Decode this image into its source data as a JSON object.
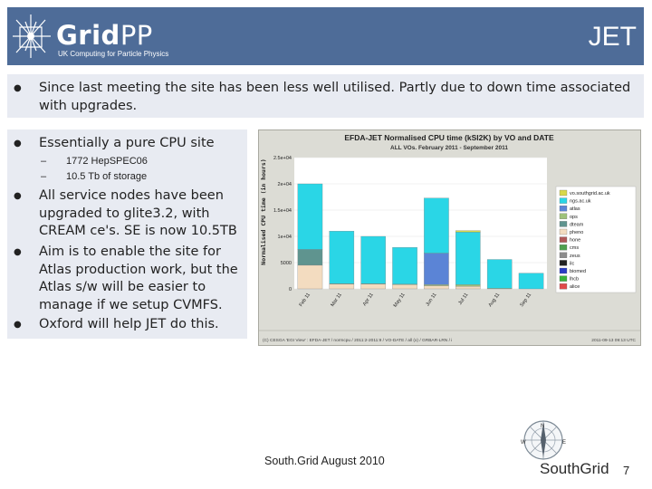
{
  "header": {
    "logo_main": "Grid",
    "logo_pp": "PP",
    "logo_sub": "UK Computing for Particle Physics",
    "title": "JET"
  },
  "bullets": [
    {
      "text1": "Since last meeting the site has been less well utilised. Partly due to down time associated",
      "text2": "with upgrades."
    },
    {
      "text": "Essentially a pure CPU site"
    },
    {
      "lines": [
        "All service nodes have been",
        "upgraded to glite3.2, with",
        "CREAM ce's. SE is now 10.5TB"
      ]
    },
    {
      "lines": [
        "Aim is to enable the site for",
        "Atlas production work, but the",
        "Atlas s/w will be easier to",
        "manage if we setup CVMFS."
      ]
    },
    {
      "text": "Oxford will help JET do this."
    }
  ],
  "sub_bullets": [
    "1772 HepSPEC06",
    "10.5 Tb of storage"
  ],
  "chart_data": {
    "type": "bar",
    "stacked": true,
    "title": "EFDA-JET Normalised CPU time (kSI2K) by VO and DATE",
    "subtitle": "ALL VOs. February 2011 - September 2011",
    "ylabel": "Normalised CPU time (in hours)",
    "yticks": [
      "0",
      "5000",
      "1e+04",
      "1.5e+04",
      "2e+04",
      "2.5e+04"
    ],
    "ylim": [
      0,
      25000
    ],
    "categories": [
      "Feb 11",
      "Mar 11",
      "Apr 11",
      "May 11",
      "Jun 11",
      "Jul 11",
      "Aug 11",
      "Sep 11"
    ],
    "series": [
      {
        "name": "pheno",
        "color": "#f3dcc0",
        "values": [
          4500,
          900,
          900,
          800,
          600,
          500,
          0,
          0
        ]
      },
      {
        "name": "dteam",
        "color": "#5f948f",
        "values": [
          3000,
          0,
          0,
          0,
          0,
          0,
          0,
          0
        ]
      },
      {
        "name": "ops",
        "color": "#9ec27a",
        "values": [
          0,
          100,
          100,
          100,
          200,
          300,
          100,
          0
        ]
      },
      {
        "name": "atlas",
        "color": "#5b84d6",
        "values": [
          0,
          0,
          0,
          0,
          6000,
          0,
          0,
          0
        ]
      },
      {
        "name": "ngs.ac.uk",
        "color": "#2ad6e6",
        "values": [
          12500,
          10000,
          9000,
          7000,
          10500,
          10000,
          5500,
          3000
        ]
      },
      {
        "name": "vo.southgrid.ac.uk",
        "color": "#d8d84a",
        "values": [
          0,
          0,
          0,
          0,
          0,
          300,
          0,
          0
        ]
      }
    ],
    "legend": [
      {
        "name": "vo.southgrid.ac.uk",
        "color": "#d8d84a"
      },
      {
        "name": "ngs.ac.uk",
        "color": "#2ad6e6"
      },
      {
        "name": "atlas",
        "color": "#5b84d6"
      },
      {
        "name": "ops",
        "color": "#9ec27a"
      },
      {
        "name": "dteam",
        "color": "#5f948f"
      },
      {
        "name": "pheno",
        "color": "#f3dcc0"
      },
      {
        "name": "hone",
        "color": "#b05858"
      },
      {
        "name": "cms",
        "color": "#4f9f4f"
      },
      {
        "name": "zeus",
        "color": "#8c8c8c"
      },
      {
        "name": "ilc",
        "color": "#222222"
      },
      {
        "name": "biomed",
        "color": "#2a3cc4"
      },
      {
        "name": "lhcb",
        "color": "#3ab23a"
      },
      {
        "name": "alice",
        "color": "#e04a4a"
      }
    ],
    "footer_left": "(C) CESGA 'EGI View' : EFDA-JET / normcpu / 2011:2-2011:9 / VO-DATE / all (x) / GRBAR-LRN / i",
    "footer_right": "2011-09-13 09:13 UTC"
  },
  "footer": {
    "text": "South.Grid August 2010",
    "logo": "SouthGrid",
    "page": "7"
  }
}
